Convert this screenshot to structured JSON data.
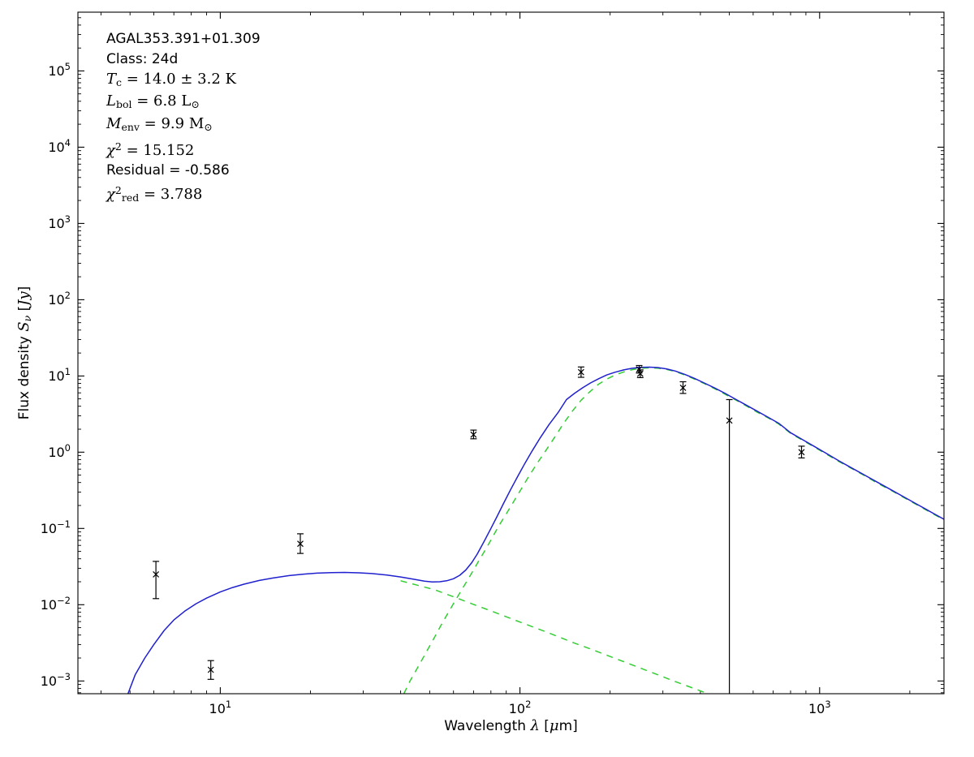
{
  "figure": {
    "background": "#ffffff"
  },
  "annotation": {
    "lines": [
      {
        "segments": [
          {
            "t": "AGAL353.391+01.309",
            "st": "s"
          }
        ]
      },
      {
        "segments": [
          {
            "t": "Class: 24d",
            "st": "s"
          }
        ]
      },
      {
        "segments": [
          {
            "t": "T",
            "st": "i"
          },
          {
            "t": "c",
            "st": "rsub"
          },
          {
            "t": " = 14.0 ± 3.2 K",
            "st": "r"
          }
        ]
      },
      {
        "segments": [
          {
            "t": "L",
            "st": "i"
          },
          {
            "t": "bol",
            "st": "rsub"
          },
          {
            "t": " = 6.8 L",
            "st": "r"
          },
          {
            "t": "⊙",
            "st": "rsub"
          }
        ]
      },
      {
        "segments": [
          {
            "t": "M",
            "st": "i"
          },
          {
            "t": "env",
            "st": "rsub"
          },
          {
            "t": " = 9.9 M",
            "st": "r"
          },
          {
            "t": "⊙",
            "st": "rsub"
          }
        ]
      },
      {
        "segments": [
          {
            "t": "χ",
            "st": "i"
          },
          {
            "t": "2",
            "st": "rsup"
          },
          {
            "t": " = 15.152",
            "st": "r"
          }
        ]
      },
      {
        "segments": [
          {
            "t": "Residual = -0.586",
            "st": "s"
          }
        ]
      },
      {
        "segments": [
          {
            "t": "χ",
            "st": "i"
          },
          {
            "t": "2",
            "st": "rsup"
          },
          {
            "t": "red",
            "st": "rsub"
          },
          {
            "t": " = 3.788",
            "st": "r"
          }
        ]
      }
    ]
  },
  "chart_data": {
    "type": "line",
    "title": "",
    "xlabel": "Wavelength λ [μm]",
    "ylabel": "Flux density Sν [Jy]",
    "xlabel_segments": [
      {
        "t": "Wavelength ",
        "st": "s"
      },
      {
        "t": "λ",
        "st": "i"
      },
      {
        "t": " [",
        "st": "s"
      },
      {
        "t": "μ",
        "st": "i"
      },
      {
        "t": "m]",
        "st": "s"
      }
    ],
    "ylabel_segments": [
      {
        "t": "Flux density ",
        "st": "s"
      },
      {
        "t": "S",
        "st": "i"
      },
      {
        "t": "ν",
        "st": "isub"
      },
      {
        "t": " [",
        "st": "s"
      },
      {
        "t": "Jy",
        "st": "i"
      },
      {
        "t": "]",
        "st": "s"
      }
    ],
    "x_scale": "log",
    "y_scale": "log",
    "xlim": [
      3.35,
      2600
    ],
    "ylim": [
      0.00068,
      590000
    ],
    "x_ticks": [
      {
        "value": 10,
        "exp": 1
      },
      {
        "value": 100,
        "exp": 2
      },
      {
        "value": 1000,
        "exp": 3
      }
    ],
    "y_ticks": [
      {
        "value": 0.001,
        "exp": -3
      },
      {
        "value": 0.01,
        "exp": -2
      },
      {
        "value": 0.1,
        "exp": -1
      },
      {
        "value": 1,
        "exp": 0
      },
      {
        "value": 10,
        "exp": 1
      },
      {
        "value": 100,
        "exp": 2
      },
      {
        "value": 1000,
        "exp": 3
      },
      {
        "value": 10000,
        "exp": 4
      },
      {
        "value": 100000,
        "exp": 5
      }
    ],
    "colors": {
      "total_model": "#2020cf",
      "components": "#32cd32",
      "data": "#000000"
    },
    "series": [
      {
        "name": "warm-component",
        "style": "dashed",
        "color_key": "components",
        "points": [
          [
            40,
            0.0206
          ],
          [
            45,
            0.0182
          ],
          [
            52,
            0.0157
          ],
          [
            60,
            0.0127
          ],
          [
            70,
            0.0101
          ],
          [
            82,
            0.008
          ],
          [
            95,
            0.0064
          ],
          [
            110,
            0.00515
          ],
          [
            128,
            0.0041
          ],
          [
            150,
            0.0032
          ],
          [
            175,
            0.00256
          ],
          [
            205,
            0.00202
          ],
          [
            240,
            0.00159
          ],
          [
            280,
            0.00126
          ],
          [
            330,
            0.00098
          ],
          [
            390,
            0.00077
          ],
          [
            445,
            0.00063
          ]
        ]
      },
      {
        "name": "cold-component",
        "style": "dashed",
        "color_key": "components",
        "points": [
          [
            41,
            0.00068
          ],
          [
            43,
            0.001
          ],
          [
            46,
            0.0016
          ],
          [
            49,
            0.0025
          ],
          [
            52,
            0.0038
          ],
          [
            55,
            0.0057
          ],
          [
            58,
            0.0082
          ],
          [
            61,
            0.0115
          ],
          [
            64,
            0.0158
          ],
          [
            67,
            0.0213
          ],
          [
            70,
            0.0285
          ],
          [
            73,
            0.038
          ],
          [
            77,
            0.054
          ],
          [
            81,
            0.077
          ],
          [
            85,
            0.108
          ],
          [
            90,
            0.155
          ],
          [
            95,
            0.22
          ],
          [
            101,
            0.33
          ],
          [
            107,
            0.48
          ],
          [
            114,
            0.71
          ],
          [
            122,
            1.05
          ],
          [
            131,
            1.6
          ],
          [
            140,
            2.4
          ],
          [
            150,
            3.5
          ],
          [
            160,
            4.8
          ],
          [
            171,
            6.2
          ],
          [
            183,
            7.8
          ],
          [
            195,
            9.1
          ],
          [
            208,
            10.3
          ],
          [
            222,
            11.3
          ],
          [
            237,
            12.1
          ],
          [
            253,
            12.6
          ],
          [
            270,
            12.8
          ],
          [
            288,
            12.65
          ],
          [
            308,
            12.2
          ],
          [
            330,
            11.4
          ],
          [
            355,
            10.3
          ],
          [
            382,
            9.1
          ],
          [
            412,
            7.95
          ],
          [
            445,
            6.85
          ],
          [
            482,
            5.8
          ],
          [
            522,
            4.9
          ],
          [
            566,
            4.1
          ],
          [
            615,
            3.4
          ],
          [
            670,
            2.85
          ],
          [
            730,
            2.35
          ],
          [
            800,
            1.77
          ],
          [
            875,
            1.44
          ],
          [
            960,
            1.17
          ],
          [
            1055,
            0.94
          ],
          [
            1160,
            0.755
          ],
          [
            1280,
            0.61
          ],
          [
            1415,
            0.49
          ],
          [
            1565,
            0.39
          ],
          [
            1735,
            0.315
          ],
          [
            1925,
            0.25
          ],
          [
            2140,
            0.198
          ],
          [
            2380,
            0.157
          ],
          [
            2600,
            0.13
          ]
        ]
      },
      {
        "name": "total-model",
        "style": "solid",
        "color_key": "total_model",
        "points": [
          [
            4.9,
            0.00065
          ],
          [
            5.2,
            0.0012
          ],
          [
            5.6,
            0.002
          ],
          [
            6.0,
            0.003
          ],
          [
            6.5,
            0.0046
          ],
          [
            7.0,
            0.0063
          ],
          [
            7.6,
            0.0082
          ],
          [
            8.3,
            0.0103
          ],
          [
            9.0,
            0.0122
          ],
          [
            10,
            0.0147
          ],
          [
            11,
            0.0168
          ],
          [
            12,
            0.0186
          ],
          [
            13.5,
            0.0208
          ],
          [
            15,
            0.0224
          ],
          [
            17,
            0.0241
          ],
          [
            19,
            0.0252
          ],
          [
            21,
            0.0259
          ],
          [
            23.5,
            0.0264
          ],
          [
            26,
            0.0265
          ],
          [
            29,
            0.0262
          ],
          [
            32,
            0.0256
          ],
          [
            36,
            0.0245
          ],
          [
            40,
            0.0231
          ],
          [
            44,
            0.0217
          ],
          [
            48,
            0.0204
          ],
          [
            51,
            0.0199
          ],
          [
            54,
            0.02
          ],
          [
            57,
            0.0206
          ],
          [
            60,
            0.0219
          ],
          [
            63,
            0.0243
          ],
          [
            66,
            0.0285
          ],
          [
            69,
            0.0355
          ],
          [
            72,
            0.046
          ],
          [
            76,
            0.068
          ],
          [
            80,
            0.1
          ],
          [
            84,
            0.145
          ],
          [
            88,
            0.21
          ],
          [
            93,
            0.32
          ],
          [
            98,
            0.47
          ],
          [
            104,
            0.72
          ],
          [
            110,
            1.05
          ],
          [
            117,
            1.55
          ],
          [
            125,
            2.3
          ],
          [
            134,
            3.3
          ],
          [
            143,
            4.9
          ],
          [
            152,
            5.9
          ],
          [
            162,
            7.0
          ],
          [
            172,
            8.1
          ],
          [
            183,
            9.2
          ],
          [
            195,
            10.3
          ],
          [
            208,
            11.2
          ],
          [
            222,
            12.0
          ],
          [
            237,
            12.6
          ],
          [
            253,
            12.95
          ],
          [
            270,
            13.05
          ],
          [
            288,
            12.9
          ],
          [
            308,
            12.4
          ],
          [
            330,
            11.6
          ],
          [
            355,
            10.5
          ],
          [
            382,
            9.3
          ],
          [
            412,
            8.1
          ],
          [
            445,
            7.0
          ],
          [
            482,
            5.95
          ],
          [
            522,
            5.0
          ],
          [
            566,
            4.2
          ],
          [
            615,
            3.5
          ],
          [
            670,
            2.9
          ],
          [
            730,
            2.4
          ],
          [
            800,
            1.8
          ],
          [
            875,
            1.47
          ],
          [
            960,
            1.19
          ],
          [
            1055,
            0.96
          ],
          [
            1160,
            0.77
          ],
          [
            1280,
            0.62
          ],
          [
            1415,
            0.5
          ],
          [
            1565,
            0.4
          ],
          [
            1735,
            0.32
          ],
          [
            1925,
            0.255
          ],
          [
            2140,
            0.202
          ],
          [
            2380,
            0.16
          ],
          [
            2600,
            0.132
          ]
        ]
      }
    ],
    "data_points": [
      {
        "x": 6.1,
        "y": 0.025,
        "lo": 0.012,
        "hi": 0.037
      },
      {
        "x": 9.3,
        "y": 0.0014,
        "lo": 0.00105,
        "hi": 0.00185
      },
      {
        "x": 18.5,
        "y": 0.063,
        "lo": 0.047,
        "hi": 0.085
      },
      {
        "x": 70,
        "y": 1.7,
        "lo": 1.5,
        "hi": 1.95
      },
      {
        "x": 160,
        "y": 11.2,
        "lo": 9.6,
        "hi": 13.1
      },
      {
        "x": 250,
        "y": 12.2,
        "lo": 10.9,
        "hi": 13.7
      },
      {
        "x": 252,
        "y": 10.7,
        "lo": 9.5,
        "hi": 12.0
      },
      {
        "x": 350,
        "y": 7.0,
        "lo": 5.9,
        "hi": 8.4
      },
      {
        "x": 500,
        "y": 2.6,
        "lo": 0.00068,
        "hi": 4.9,
        "locap": false
      },
      {
        "x": 870,
        "y": 1.0,
        "lo": 0.84,
        "hi": 1.2
      }
    ]
  }
}
